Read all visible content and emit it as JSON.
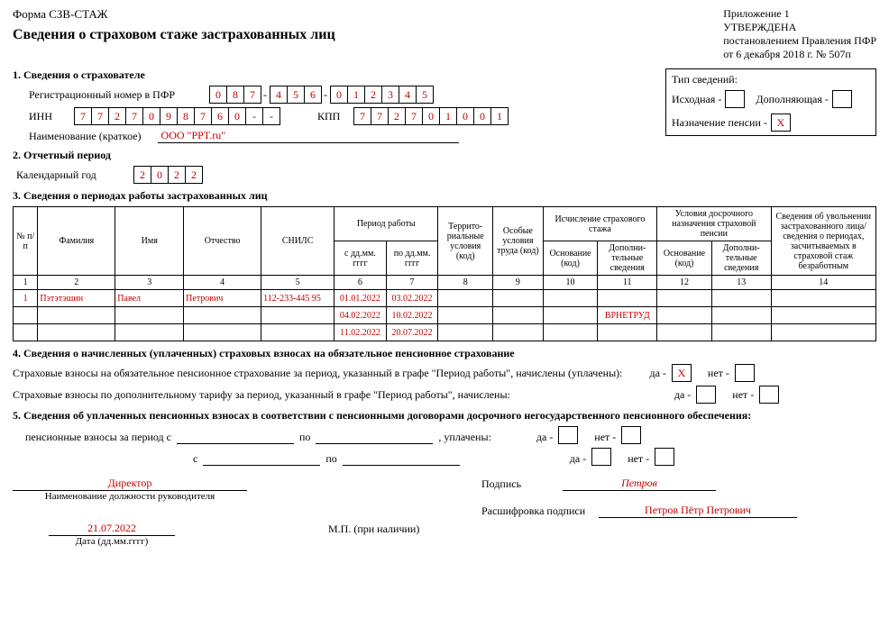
{
  "header": {
    "form_code": "Форма СЗВ-СТАЖ",
    "title": "Сведения о страховом стаже застрахованных лиц",
    "appendix": "Приложение 1",
    "approved1": "УТВЕРЖДЕНА",
    "approved2": "постановлением Правления ПФР",
    "approved3": "от 6 декабря 2018 г. № 507п"
  },
  "s1": {
    "title": "1. Сведения о страхователе",
    "reg_label": "Регистрационный номер в ПФР",
    "reg_p1": [
      "0",
      "8",
      "7"
    ],
    "reg_p2": [
      "4",
      "5",
      "6"
    ],
    "reg_p3": [
      "0",
      "1",
      "2",
      "3",
      "4",
      "5"
    ],
    "inn_label": "ИНН",
    "inn": [
      "7",
      "7",
      "2",
      "7",
      "0",
      "9",
      "8",
      "7",
      "6",
      "0",
      "-",
      "-"
    ],
    "kpp_label": "КПП",
    "kpp": [
      "7",
      "7",
      "2",
      "7",
      "0",
      "1",
      "0",
      "0",
      "1"
    ],
    "name_label": "Наименование (краткое)",
    "name_value": "ООО \"PPT.ru\""
  },
  "typebox": {
    "title": "Тип сведений:",
    "l1a": "Исходная -",
    "l1b": "Дополняющая -",
    "l2": "Назначение пенсии -",
    "pension_mark": "X"
  },
  "s2": {
    "title": "2. Отчетный период",
    "cal_label": "Календарный год",
    "year": [
      "2",
      "0",
      "2",
      "2"
    ]
  },
  "s3": {
    "title": "3. Сведения о периодах работы застрахованных лиц",
    "cols": {
      "n": "№ п/п",
      "fam": "Фамилия",
      "name": "Имя",
      "patr": "Отчество",
      "snils": "СНИЛС",
      "period": "Период работы",
      "from": "с дд.мм. гггг",
      "to": "по дд.мм. гггг",
      "terr": "Террито- риальные условия (код)",
      "spec": "Особые условия труда (код)",
      "calc": "Исчисление страхового стажа",
      "early": "Условия досрочного назначения страховой пенсии",
      "base": "Основание (код)",
      "extra": "Дополни- тельные сведения",
      "fired": "Сведения об увольнении застрахованного лица/ сведения о периодах, засчитываемых в страховой стаж безработным"
    },
    "numrow": [
      "1",
      "2",
      "3",
      "4",
      "5",
      "6",
      "7",
      "8",
      "9",
      "10",
      "11",
      "12",
      "13",
      "14"
    ],
    "rows": [
      {
        "n": "1",
        "fam": "Пэтэтэшин",
        "name": "Павел",
        "patr": "Петрович",
        "snils": "112-233-445 95",
        "from": "01.01.2022",
        "to": "03.02.2022",
        "extra": ""
      },
      {
        "n": "",
        "fam": "",
        "name": "",
        "patr": "",
        "snils": "",
        "from": "04.02.2022",
        "to": "10.02.2022",
        "extra": "ВРНЕТРУД"
      },
      {
        "n": "",
        "fam": "",
        "name": "",
        "patr": "",
        "snils": "",
        "from": "11.02.2022",
        "to": "20.07.2022",
        "extra": ""
      }
    ]
  },
  "s4": {
    "title": "4. Сведения о начисленных (уплаченных) страховых взносах на обязательное пенсионное страхование",
    "line1": "Страховые взносы на обязательное пенсионное страхование за период, указанный в графе \"Период работы\", начислены (уплачены):",
    "line2": "Страховые взносы по дополнительному тарифу за период, указанный в графе \"Период работы\", начислены:",
    "yes": "да -",
    "no": "нет -",
    "mark": "X"
  },
  "s5": {
    "title": "5. Сведения об уплаченных пенсионных взносах в соответствии с пенсионными договорами досрочного негосударственного пенсионного обеспечения:",
    "line": "пенсионные взносы за период с",
    "po": "по",
    "upl": ", уплачены:",
    "s": "с",
    "yes": "да -",
    "no": "нет -"
  },
  "sign": {
    "position": "Директор",
    "position_cap": "Наименование должности руководителя",
    "sig_cap": "Подпись",
    "sig_val": "Петров",
    "decode_cap": "Расшифровка подписи",
    "decode_val": "Петров Пётр Петрович",
    "date": "21.07.2022",
    "date_cap": "Дата (дд.мм.гггг)",
    "mp": "М.П. (при наличии)"
  }
}
